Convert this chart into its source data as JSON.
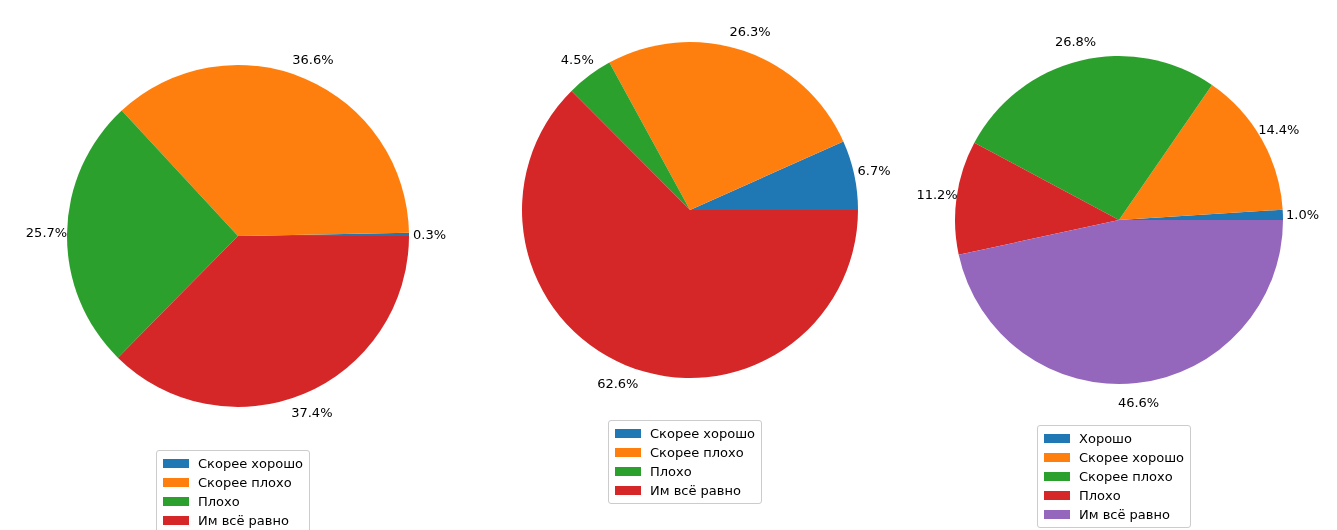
{
  "chart_data": [
    {
      "type": "pie",
      "categories": [
        "Скорее хорошо",
        "Скорее плохо",
        "Плохо",
        "Им всё равно"
      ],
      "values": [
        0.3,
        36.6,
        25.7,
        37.4
      ],
      "colors": [
        "#1f77b4",
        "#ff7f0e",
        "#2ca02c",
        "#d62728"
      ],
      "value_labels": [
        "0.3%",
        "36.6%",
        "25.7%",
        "37.4%"
      ],
      "legend": "bottom"
    },
    {
      "type": "pie",
      "categories": [
        "Скорее хорошо",
        "Скорее плохо",
        "Плохо",
        "Им всё равно"
      ],
      "values": [
        6.7,
        26.3,
        4.5,
        62.6
      ],
      "colors": [
        "#1f77b4",
        "#ff7f0e",
        "#2ca02c",
        "#d62728"
      ],
      "value_labels": [
        "6.7%",
        "26.3%",
        "4.5%",
        "62.6%"
      ],
      "legend": "bottom"
    },
    {
      "type": "pie",
      "categories": [
        "Хорошо",
        "Скорее хорошо",
        "Скорее плохо",
        "Плохо",
        "Им всё равно"
      ],
      "values": [
        1.0,
        14.4,
        26.8,
        11.2,
        46.6
      ],
      "colors": [
        "#1f77b4",
        "#ff7f0e",
        "#2ca02c",
        "#d62728",
        "#9467bd"
      ],
      "value_labels": [
        "1.0%",
        "14.4%",
        "26.8%",
        "11.2%",
        "46.6%"
      ],
      "legend": "bottom"
    }
  ]
}
